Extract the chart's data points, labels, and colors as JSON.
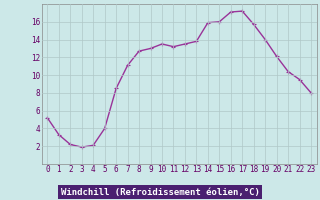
{
  "x": [
    0,
    1,
    2,
    3,
    4,
    5,
    6,
    7,
    8,
    9,
    10,
    11,
    12,
    13,
    14,
    15,
    16,
    17,
    18,
    19,
    20,
    21,
    22,
    23
  ],
  "y": [
    5.2,
    3.3,
    2.2,
    1.9,
    2.1,
    4.0,
    8.5,
    11.1,
    12.7,
    13.0,
    13.5,
    13.2,
    13.5,
    13.8,
    15.9,
    16.0,
    17.1,
    17.2,
    15.7,
    14.0,
    12.1,
    10.4,
    9.5,
    8.0
  ],
  "xlim": [
    -0.5,
    23.5
  ],
  "ylim": [
    0,
    18
  ],
  "xticks": [
    0,
    1,
    2,
    3,
    4,
    5,
    6,
    7,
    8,
    9,
    10,
    11,
    12,
    13,
    14,
    15,
    16,
    17,
    18,
    19,
    20,
    21,
    22,
    23
  ],
  "yticks": [
    2,
    4,
    6,
    8,
    10,
    12,
    14,
    16
  ],
  "line_color": "#993399",
  "marker": "+",
  "bg_color": "#cce8e8",
  "grid_color": "#b0c8c8",
  "xlabel": "Windchill (Refroidissement éolien,°C)",
  "xlabel_bg": "#4a2070",
  "xlabel_color": "#ffffff",
  "tick_color": "#660066",
  "label_fontsize": 6.5,
  "tick_fontsize": 5.5,
  "line_width": 1.0,
  "marker_size": 3.5
}
